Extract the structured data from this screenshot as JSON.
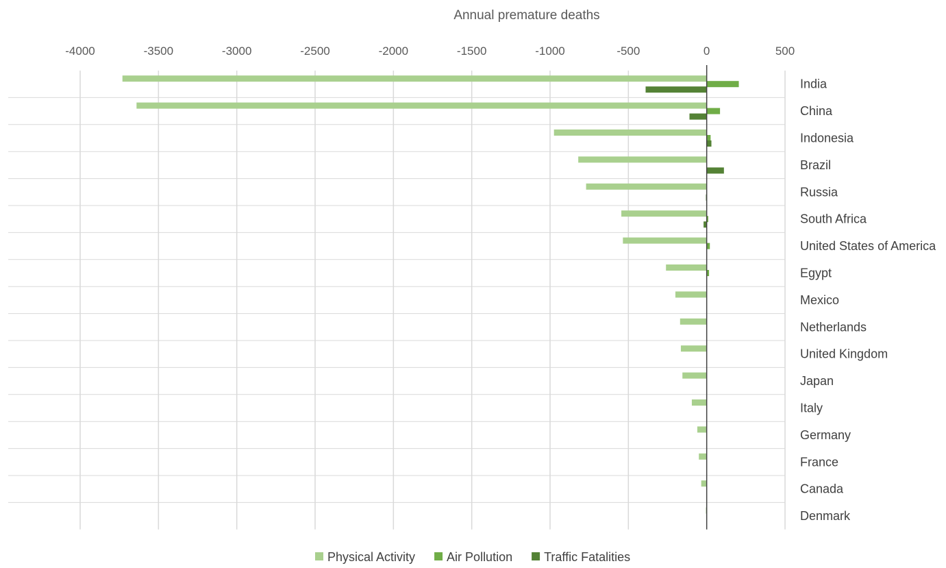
{
  "chart_data": {
    "type": "bar",
    "orientation": "horizontal",
    "title": "",
    "xlabel": "Annual premature deaths",
    "ylabel": "",
    "xlim": [
      -4000,
      500
    ],
    "x_ticks": [
      -4000,
      -3500,
      -3000,
      -2500,
      -2000,
      -1500,
      -1000,
      -500,
      0,
      500
    ],
    "x_tick_labels": [
      "-4000",
      "-3500",
      "-3000",
      "-2500",
      "-2000",
      "-1500",
      "-1000",
      "-500",
      "0",
      "500"
    ],
    "x_axis_position": "top",
    "grid": "vertical",
    "legend_position": "bottom",
    "categories": [
      "India",
      "China",
      "Indonesia",
      "Brazil",
      "Russia",
      "South Africa",
      "United States of America",
      "Egypt",
      "Mexico",
      "Netherlands",
      "United Kingdom",
      "Japan",
      "Italy",
      "Germany",
      "France",
      "Canada",
      "Denmark"
    ],
    "series": [
      {
        "name": "Physical Activity",
        "color": "#a9d08e",
        "values": [
          -3730,
          -3640,
          -975,
          -820,
          -770,
          -545,
          -535,
          -260,
          -200,
          -170,
          -165,
          -155,
          -95,
          -60,
          -50,
          -35,
          -5
        ]
      },
      {
        "name": "Air Pollution",
        "color": "#70ad47",
        "values": [
          205,
          85,
          25,
          0,
          0,
          10,
          20,
          15,
          0,
          0,
          0,
          0,
          0,
          0,
          0,
          0,
          0
        ]
      },
      {
        "name": "Traffic Fatalities",
        "color": "#548235",
        "values": [
          -390,
          -110,
          30,
          110,
          -5,
          -20,
          0,
          0,
          0,
          0,
          0,
          0,
          0,
          0,
          0,
          0,
          0
        ]
      }
    ]
  }
}
